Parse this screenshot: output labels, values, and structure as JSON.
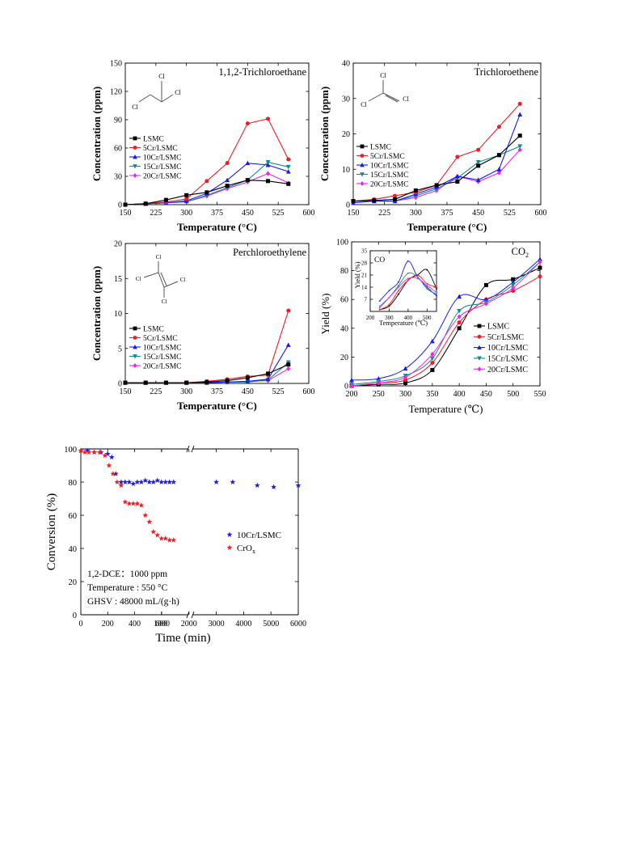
{
  "colors": {
    "LSMC": "#000000",
    "5Cr/LSMC": "#ee1c25",
    "10Cr/LSMC": "#1a1aee",
    "15Cr/LSMC": "#138c8c",
    "20Cr/LSMC": "#ee22ee"
  },
  "chart_data": [
    {
      "id": "tca",
      "type": "line",
      "title": "1,1,2-Trichloroethane",
      "xlabel": "Temperature (°C)",
      "ylabel": "Concentration (ppm)",
      "xlim": [
        150,
        600
      ],
      "ylim": [
        0,
        150
      ],
      "xticks": [
        150,
        225,
        300,
        375,
        450,
        525,
        600
      ],
      "yticks": [
        0,
        30,
        60,
        90,
        120,
        150
      ],
      "legend_position": "middle-left",
      "molecule_labels": [
        "Cl",
        "Cl",
        "Cl"
      ],
      "x": [
        150,
        200,
        250,
        300,
        350,
        400,
        450,
        500,
        550
      ],
      "series": [
        {
          "name": "LSMC",
          "marker": "square",
          "values": [
            0,
            1,
            5,
            10,
            13,
            20,
            26,
            25,
            22
          ]
        },
        {
          "name": "5Cr/LSMC",
          "marker": "circle",
          "values": [
            0,
            1,
            3,
            6,
            25,
            44,
            86,
            91,
            48
          ]
        },
        {
          "name": "10Cr/LSMC",
          "marker": "triangle-up",
          "values": [
            0,
            1,
            2,
            4,
            12,
            26,
            44,
            42,
            35
          ]
        },
        {
          "name": "15Cr/LSMC",
          "marker": "triangle-down",
          "values": [
            0,
            1,
            2,
            3,
            10,
            18,
            26,
            45,
            40
          ]
        },
        {
          "name": "20Cr/LSMC",
          "marker": "diamond",
          "values": [
            0,
            1,
            2,
            3,
            9,
            17,
            24,
            33,
            23
          ]
        }
      ]
    },
    {
      "id": "tce",
      "type": "line",
      "title": "Trichloroethene",
      "xlabel": "Temperature (°C)",
      "ylabel": "Concentration (ppm)",
      "xlim": [
        150,
        600
      ],
      "ylim": [
        0,
        40
      ],
      "xticks": [
        150,
        225,
        300,
        375,
        450,
        525,
        600
      ],
      "yticks": [
        0,
        10,
        20,
        30,
        40
      ],
      "legend_position": "middle-left",
      "molecule_labels": [
        "Cl",
        "Cl",
        "Cl"
      ],
      "x": [
        150,
        200,
        250,
        300,
        350,
        400,
        450,
        500,
        550
      ],
      "series": [
        {
          "name": "LSMC",
          "marker": "square",
          "values": [
            1,
            1.2,
            1.5,
            4,
            5.5,
            6.5,
            11,
            14,
            19.5
          ]
        },
        {
          "name": "5Cr/LSMC",
          "marker": "circle",
          "values": [
            1,
            1.5,
            2.5,
            3.5,
            5.5,
            13.5,
            15.5,
            22,
            28.5
          ]
        },
        {
          "name": "10Cr/LSMC",
          "marker": "triangle-up",
          "values": [
            0.5,
            1,
            1,
            3,
            5,
            8,
            7,
            10,
            25.5
          ]
        },
        {
          "name": "15Cr/LSMC",
          "marker": "triangle-down",
          "values": [
            1,
            1,
            1,
            2.5,
            4.5,
            7.5,
            12,
            14,
            16.5
          ]
        },
        {
          "name": "20Cr/LSMC",
          "marker": "diamond",
          "values": [
            1,
            1,
            1,
            2,
            4,
            8,
            6.5,
            9,
            15.5
          ]
        }
      ]
    },
    {
      "id": "pce",
      "type": "line",
      "title": "Perchloroethylene",
      "xlabel": "Temperature (°C)",
      "ylabel": "Concentration (ppm)",
      "xlim": [
        150,
        600
      ],
      "ylim": [
        0,
        20
      ],
      "xticks": [
        150,
        225,
        300,
        375,
        450,
        525,
        600
      ],
      "yticks": [
        0,
        5,
        10,
        15,
        20
      ],
      "legend_position": "middle-left",
      "molecule_labels": [
        "Cl",
        "Cl",
        "Cl",
        "Cl"
      ],
      "x": [
        150,
        200,
        250,
        300,
        350,
        400,
        450,
        500,
        550
      ],
      "series": [
        {
          "name": "LSMC",
          "marker": "square",
          "values": [
            0.1,
            0.1,
            0.1,
            0.1,
            0.2,
            0.4,
            0.8,
            1.4,
            2.7
          ]
        },
        {
          "name": "5Cr/LSMC",
          "marker": "circle",
          "values": [
            0.1,
            0.1,
            0.1,
            0.1,
            0.3,
            0.6,
            1.0,
            1.2,
            10.4
          ]
        },
        {
          "name": "10Cr/LSMC",
          "marker": "triangle-up",
          "values": [
            0.1,
            0.1,
            0.1,
            0.1,
            0.1,
            0.2,
            0.3,
            0.6,
            5.5
          ]
        },
        {
          "name": "15Cr/LSMC",
          "marker": "triangle-down",
          "values": [
            0.1,
            0.1,
            0.1,
            0.1,
            0.1,
            0.2,
            0.2,
            0.5,
            3.0
          ]
        },
        {
          "name": "20Cr/LSMC",
          "marker": "diamond",
          "values": [
            0.1,
            0.1,
            0.1,
            0.1,
            0.1,
            0.2,
            0.3,
            0.4,
            2.1
          ]
        }
      ]
    },
    {
      "id": "co2",
      "type": "line",
      "label": "CO2",
      "xlabel": "Temperature (℃)",
      "ylabel": "Yield (%)",
      "xlim": [
        200,
        550
      ],
      "ylim": [
        0,
        100
      ],
      "xticks": [
        200,
        250,
        300,
        350,
        400,
        450,
        500,
        550
      ],
      "yticks": [
        0,
        20,
        40,
        60,
        80,
        100
      ],
      "legend_position": "bottom-right",
      "x": [
        200,
        250,
        300,
        350,
        400,
        450,
        500,
        550
      ],
      "series": [
        {
          "name": "LSMC",
          "marker": "square",
          "values": [
            0,
            1,
            2,
            11,
            40,
            70,
            74,
            82
          ]
        },
        {
          "name": "5Cr/LSMC",
          "marker": "circle",
          "values": [
            0,
            2,
            4,
            16,
            44,
            60,
            66,
            76
          ]
        },
        {
          "name": "10Cr/LSMC",
          "marker": "triangle-up",
          "values": [
            4,
            5,
            12,
            31,
            62,
            60,
            72,
            88
          ]
        },
        {
          "name": "15Cr/LSMC",
          "marker": "triangle-down",
          "values": [
            1,
            3,
            7,
            19,
            52,
            58,
            70,
            86
          ]
        },
        {
          "name": "20Cr/LSMC",
          "marker": "diamond",
          "values": [
            0,
            2,
            6,
            22,
            48,
            57,
            68,
            86
          ]
        }
      ]
    },
    {
      "id": "co-inset",
      "type": "line",
      "label": "CO",
      "xlabel": "Temperature (℃)",
      "ylabel": "Yield (%)",
      "xlim": [
        200,
        550
      ],
      "ylim": [
        0,
        35
      ],
      "xticks": [
        200,
        300,
        400,
        500
      ],
      "yticks": [
        7,
        14,
        21,
        28,
        35
      ],
      "x": [
        250,
        300,
        350,
        400,
        450,
        500,
        550
      ],
      "series": [
        {
          "name": "LSMC",
          "values": [
            1,
            3,
            10,
            18,
            21,
            24,
            13
          ]
        },
        {
          "name": "5Cr/LSMC",
          "values": [
            1,
            4,
            12,
            18,
            21,
            16,
            14
          ]
        },
        {
          "name": "10Cr/LSMC",
          "values": [
            6,
            12,
            17,
            29,
            20,
            14,
            9
          ]
        },
        {
          "name": "15Cr/LSMC",
          "values": [
            3,
            8,
            15,
            22,
            20,
            13,
            10
          ]
        },
        {
          "name": "20Cr/LSMC",
          "values": [
            2,
            8,
            14,
            19,
            19,
            15,
            11
          ]
        }
      ]
    },
    {
      "id": "stability",
      "type": "scatter",
      "xlabel": "Time (min)",
      "ylabel": "Conversion (%)",
      "ylim": [
        0,
        100
      ],
      "yticks": [
        0,
        20,
        40,
        60,
        80,
        100
      ],
      "xticks_left": [
        0,
        200,
        400,
        600
      ],
      "xticks_right": [
        1000,
        2000,
        3000,
        4000,
        5000,
        6000
      ],
      "axis_break": true,
      "legend_position": "middle-right",
      "conditions": [
        "1,2-DCE：1000 ppm",
        "Temperature : 550 °C",
        "GHSV : 48000 mL/(g·h)"
      ],
      "series": [
        {
          "name": "10Cr/LSMC",
          "color": "#1a1aee",
          "x": [
            0,
            50,
            100,
            150,
            200,
            230,
            260,
            300,
            330,
            360,
            390,
            420,
            450,
            480,
            510,
            540,
            570,
            600,
            630,
            660,
            690,
            3000,
            3600,
            4500,
            5100,
            6000
          ],
          "y": [
            99,
            99,
            98,
            98,
            97,
            95,
            85,
            80,
            80,
            80,
            79,
            80,
            80,
            81,
            80,
            80,
            81,
            80,
            80,
            80,
            80,
            80,
            80,
            78,
            77,
            78
          ]
        },
        {
          "name": "CrOx",
          "color": "#ee1c25",
          "x": [
            0,
            30,
            60,
            100,
            140,
            180,
            210,
            240,
            270,
            300,
            330,
            360,
            390,
            420,
            450,
            480,
            510,
            540,
            570,
            600,
            630,
            660,
            690
          ],
          "y": [
            99,
            98,
            98,
            98,
            98,
            96,
            90,
            85,
            80,
            78,
            68,
            67,
            67,
            67,
            66,
            60,
            56,
            50,
            48,
            46,
            46,
            45,
            45
          ]
        }
      ]
    }
  ]
}
